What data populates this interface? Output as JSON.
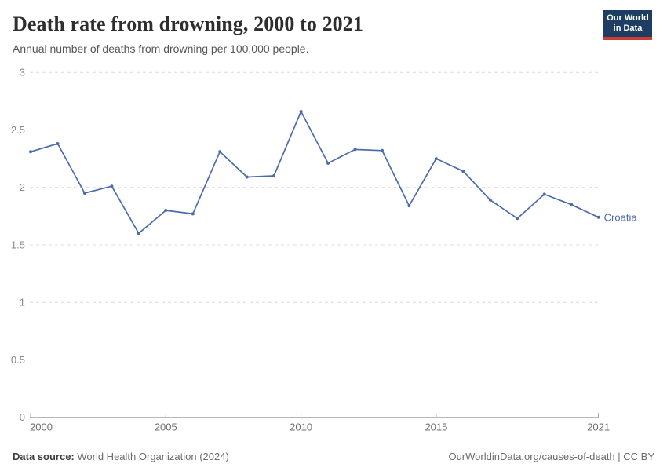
{
  "header": {
    "title": "Death rate from drowning, 2000 to 2021",
    "subtitle": "Annual number of deaths from drowning per 100,000 people.",
    "logo": {
      "line1": "Our World",
      "line2": "in Data",
      "bg_color": "#1d3d63",
      "accent_color": "#cf3c32"
    }
  },
  "chart_data": {
    "type": "line",
    "title": "Death rate from drowning, 2000 to 2021",
    "xlabel": "",
    "ylabel": "",
    "x": [
      2000,
      2001,
      2002,
      2003,
      2004,
      2005,
      2006,
      2007,
      2008,
      2009,
      2010,
      2011,
      2012,
      2013,
      2014,
      2015,
      2016,
      2017,
      2018,
      2019,
      2020,
      2021
    ],
    "series": [
      {
        "name": "Croatia",
        "color": "#4c6bac",
        "values": [
          2.31,
          2.38,
          1.95,
          2.01,
          1.6,
          1.8,
          1.77,
          2.31,
          2.09,
          2.1,
          2.66,
          2.21,
          2.33,
          2.32,
          1.84,
          2.25,
          2.14,
          1.89,
          1.73,
          1.94,
          1.85,
          1.74
        ]
      }
    ],
    "ylim": [
      0,
      3
    ],
    "xlim": [
      2000,
      2021
    ],
    "yticks": [
      0,
      0.5,
      1,
      1.5,
      2,
      2.5,
      3
    ],
    "xticks": [
      2000,
      2005,
      2010,
      2015,
      2021
    ],
    "grid": true,
    "legend_position": "end-of-line-label",
    "colors": {
      "gridline": "#dcdcdc",
      "axis": "#a0a0a0",
      "y_tick_label": "#8a8a8a",
      "x_tick_label": "#6e6e6e"
    }
  },
  "footer": {
    "source_label": "Data source:",
    "source_text": " World Health Organization (2024)",
    "credit": "OurWorldinData.org/causes-of-death | CC BY"
  }
}
